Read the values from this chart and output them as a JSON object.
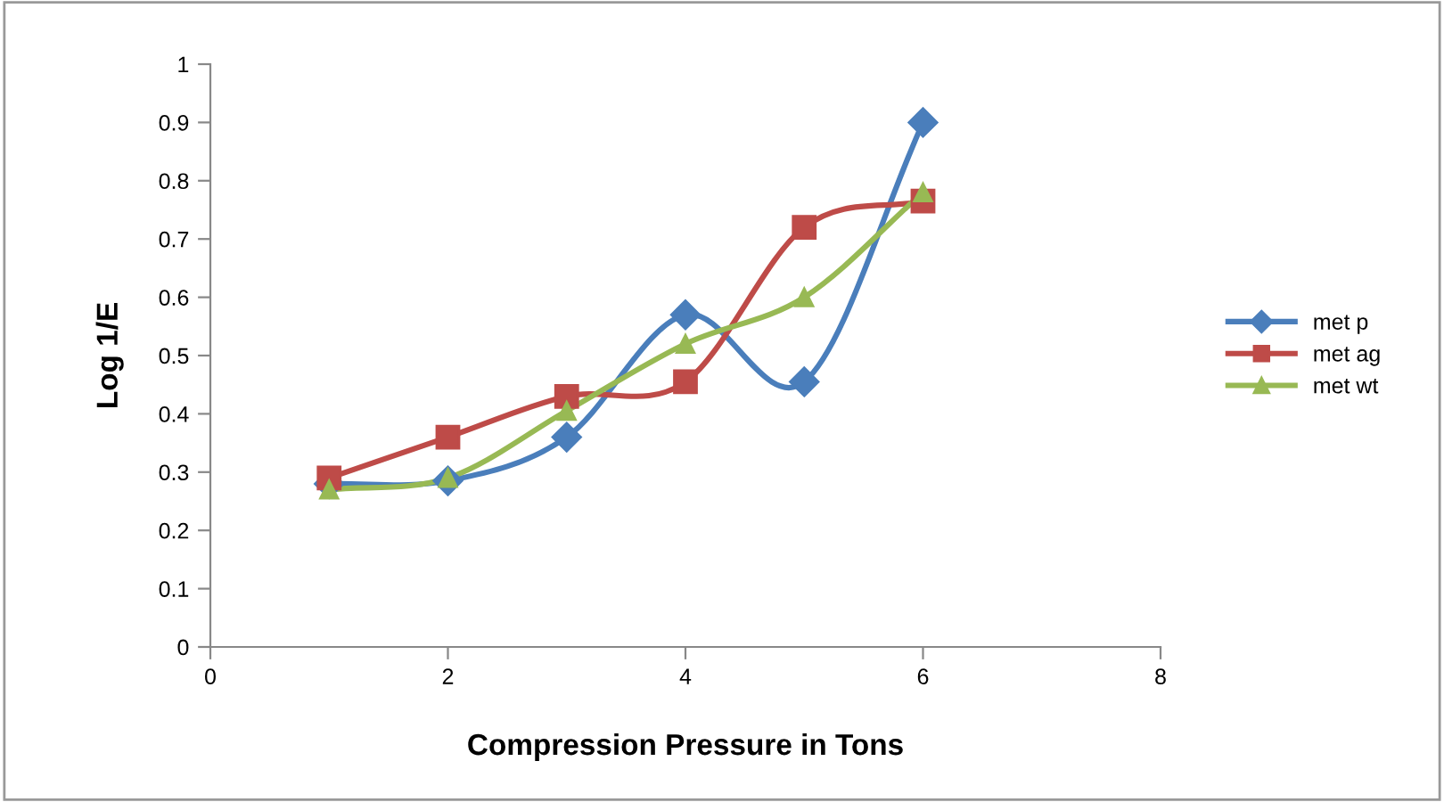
{
  "chart_data": {
    "type": "line",
    "xlabel": "Compression Pressure in Tons",
    "ylabel": "Log 1/E",
    "xlim": [
      0,
      8
    ],
    "xticks": [
      0,
      2,
      4,
      6,
      8
    ],
    "ylim": [
      0,
      1
    ],
    "yticks": [
      0,
      0.1,
      0.2,
      0.3,
      0.4,
      0.5,
      0.6,
      0.7,
      0.8,
      0.9,
      1
    ],
    "x": [
      1,
      2,
      3,
      4,
      5,
      6
    ],
    "grid": false,
    "legend": "right",
    "series": [
      {
        "name": "met p",
        "color": "#4a7ebb",
        "marker": "diamond",
        "values": [
          0.28,
          0.285,
          0.36,
          0.57,
          0.455,
          0.9
        ]
      },
      {
        "name": "met ag",
        "color": "#be4b48",
        "marker": "square",
        "values": [
          0.29,
          0.36,
          0.43,
          0.455,
          0.72,
          0.765
        ]
      },
      {
        "name": "met wt",
        "color": "#98b954",
        "marker": "triangle",
        "values": [
          0.27,
          0.29,
          0.405,
          0.52,
          0.6,
          0.78
        ]
      }
    ]
  }
}
